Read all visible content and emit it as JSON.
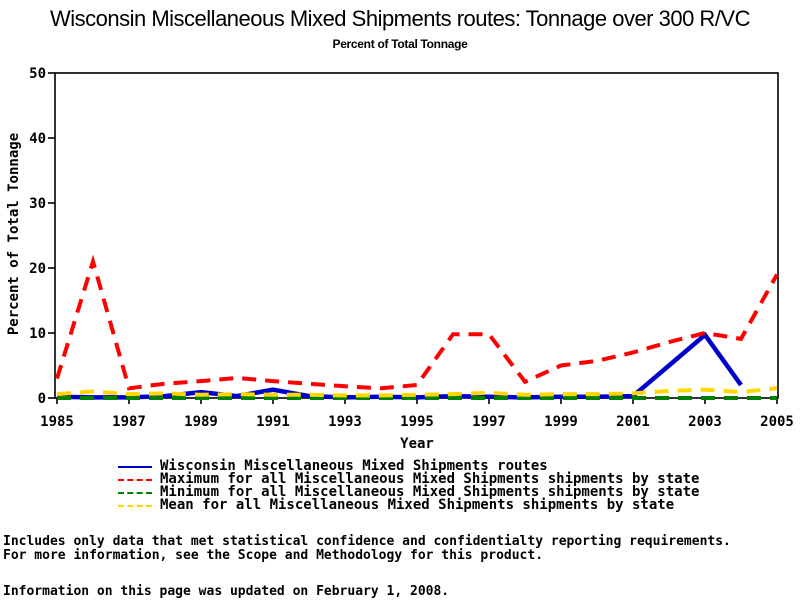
{
  "chart_data": {
    "type": "line",
    "title": "Wisconsin Miscellaneous Mixed Shipments routes: Tonnage over 300 R/VC",
    "subtitle": "Percent of Total Tonnage",
    "xlabel": "Year",
    "ylabel": "Percent of Total Tonnage",
    "xlim": [
      1985,
      2005
    ],
    "ylim": [
      0,
      50
    ],
    "x_ticks": [
      1985,
      1987,
      1989,
      1991,
      1993,
      1995,
      1997,
      1999,
      2001,
      2003,
      2005
    ],
    "y_ticks": [
      0,
      10,
      20,
      30,
      40,
      50
    ],
    "grid": false,
    "legend_position": "bottom-left",
    "x": [
      1985,
      1986,
      1987,
      1988,
      1989,
      1990,
      1991,
      1992,
      1993,
      1994,
      1995,
      1996,
      1997,
      1998,
      1999,
      2000,
      2001,
      2002,
      2003,
      2004,
      2005
    ],
    "series": [
      {
        "name": "Wisconsin Miscellaneous Mixed Shipments routes",
        "color": "#0000CC",
        "style": "solid",
        "values": [
          0.2,
          0.1,
          0.1,
          0.3,
          0.9,
          0.3,
          1.3,
          0.3,
          0.1,
          0.2,
          0.1,
          0.3,
          0.2,
          0.1,
          0.2,
          0.2,
          0.3,
          5.0,
          9.7,
          2.0,
          null
        ]
      },
      {
        "name": "Maximum for all Miscellaneous Mixed Shipments shipments by state",
        "color": "#FF0000",
        "style": "dashed",
        "values": [
          3.0,
          21.0,
          1.5,
          2.2,
          2.6,
          3.1,
          2.6,
          2.2,
          1.8,
          1.5,
          2.0,
          9.8,
          9.8,
          2.5,
          5.0,
          5.7,
          7.0,
          8.6,
          10.0,
          9.1,
          19.0
        ]
      },
      {
        "name": "Minimum for all Miscellaneous Mixed Shipments shipments by state",
        "color": "#008000",
        "style": "dashed",
        "values": [
          0,
          0,
          0,
          0,
          0,
          0,
          0,
          0,
          0,
          0,
          0,
          0,
          0,
          0,
          0,
          0,
          0,
          0,
          0,
          0,
          0
        ]
      },
      {
        "name": "Mean for all Miscellaneous Mixed Shipments shipments by state",
        "color": "#FFD700",
        "style": "dashed",
        "values": [
          0.6,
          1.0,
          0.6,
          0.7,
          0.5,
          0.6,
          0.5,
          0.5,
          0.4,
          0.4,
          0.5,
          0.6,
          0.8,
          0.5,
          0.6,
          0.6,
          0.7,
          1.1,
          1.3,
          0.9,
          1.5
        ]
      }
    ]
  },
  "footnotes": {
    "line1": "Includes only data that met statistical confidence and confidentialty reporting requirements.",
    "line2": "For more information, see the Scope and Methodology for this product.",
    "updated": "Information on this page was updated on February 1, 2008."
  }
}
